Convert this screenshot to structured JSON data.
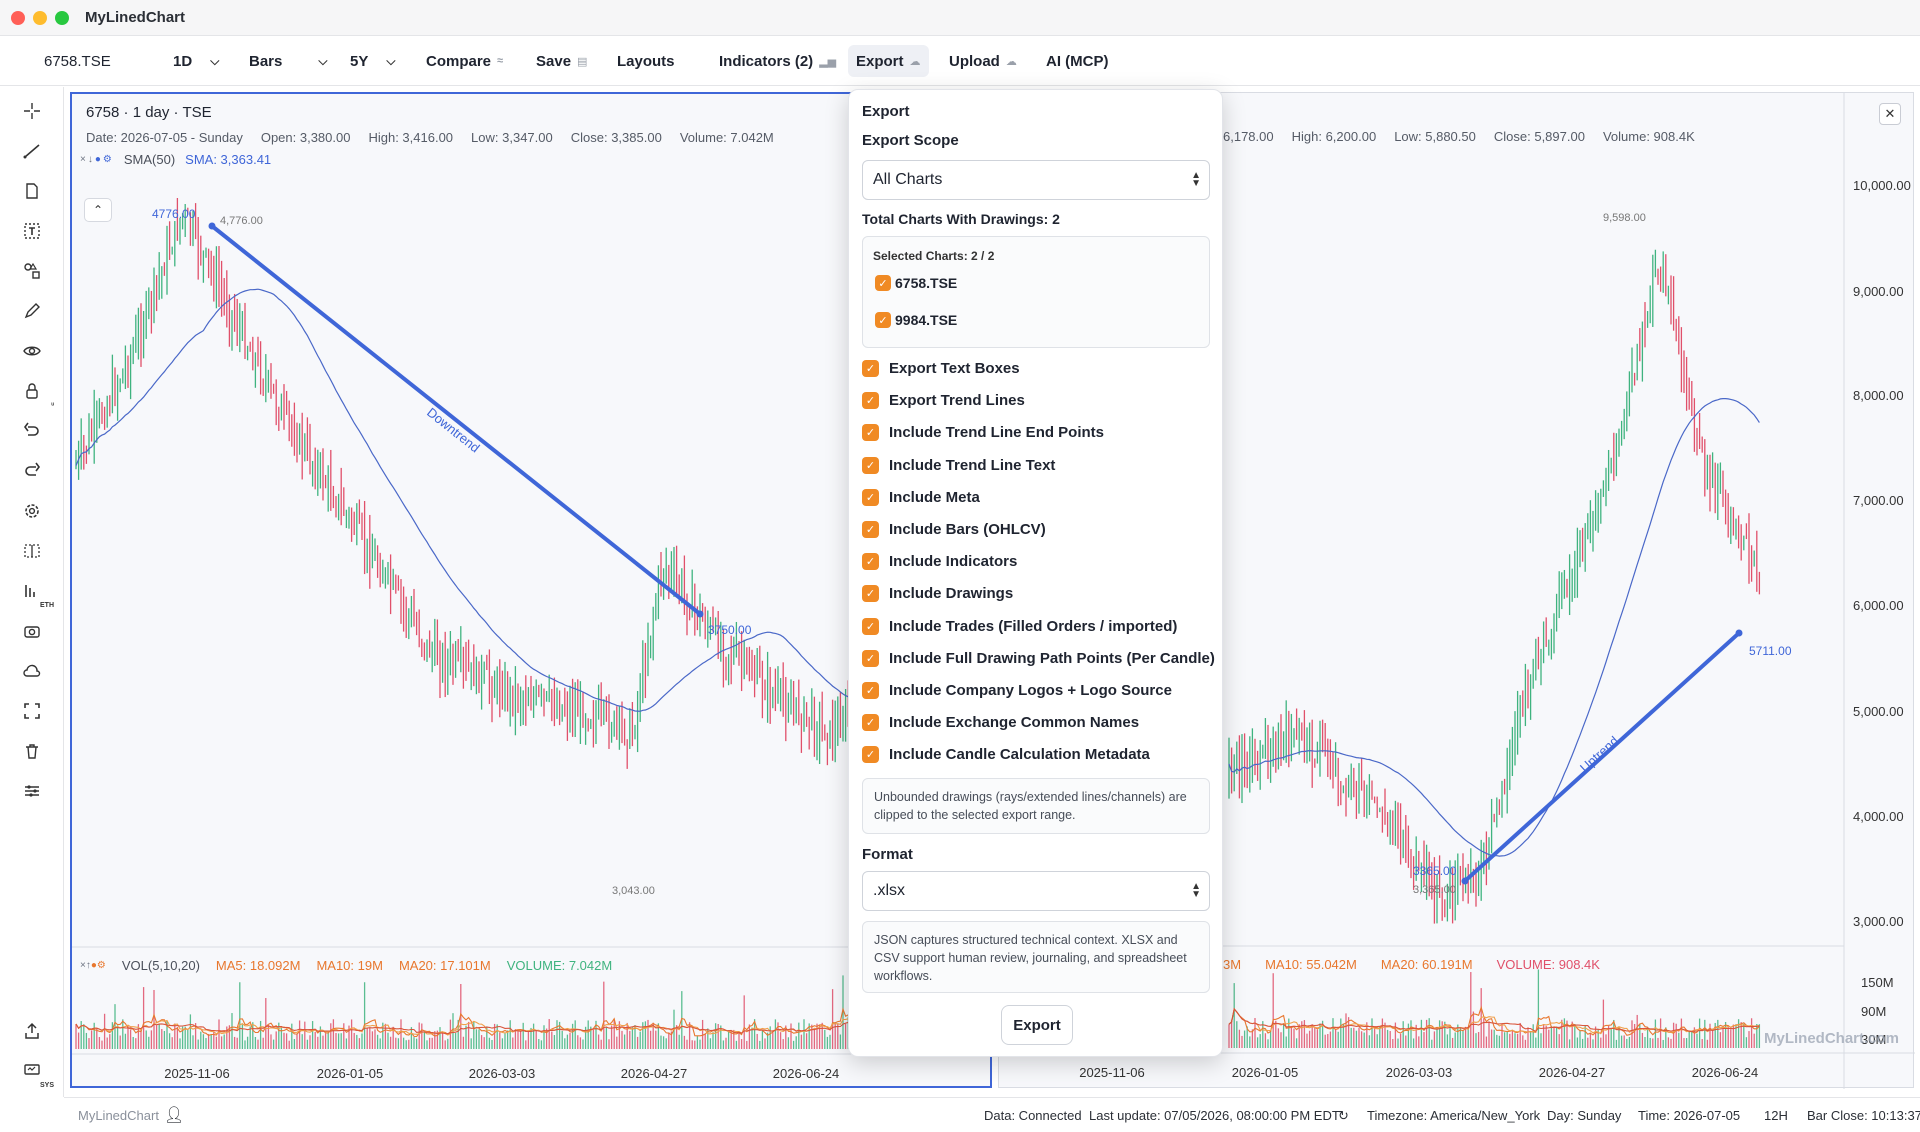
{
  "app": {
    "title": "MyLinedChart"
  },
  "toolbar": {
    "symbol": "6758.TSE",
    "interval": "1D",
    "chart_type": "Bars",
    "range": "5Y",
    "compare": "Compare",
    "save": "Save",
    "layouts": "Layouts",
    "indicators": "Indicators (2)",
    "export": "Export",
    "upload": "Upload",
    "ai": "AI (MCP)"
  },
  "left_chart": {
    "title": "6758 · 1 day · TSE",
    "ohlc": {
      "date": "Date: 2026-07-05 - Sunday",
      "open": "Open: 3,380.00",
      "high": "High: 3,416.00",
      "low": "Low: 3,347.00",
      "close": "Close: 3,385.00",
      "volume": "Volume: 7.042M"
    },
    "indicator": {
      "name": "SMA(50)",
      "value": "SMA: 3,363.41"
    },
    "volume_legend": {
      "name": "VOL(5,10,20)",
      "ma5": "MA5: 18.092M",
      "ma10": "MA10: 19M",
      "ma20": "MA20: 17.101M",
      "vol": "VOLUME: 7.042M"
    },
    "x_ticks": [
      "2025-11-06",
      "2026-01-05",
      "2026-03-03",
      "2026-04-27",
      "2026-06-24"
    ],
    "annotations": {
      "start_label": "4776.00",
      "high_label": "4,776.00",
      "end_label": "3750.00",
      "low_label": "3,043.00",
      "trend_text": "Downtrend"
    }
  },
  "right_chart": {
    "ohlc": {
      "open": "6,178.00",
      "high": "High: 6,200.00",
      "low": "Low: 5,880.50",
      "close": "Close: 5,897.00",
      "volume": "Volume: 908.4K"
    },
    "volume_legend": {
      "ma5": "3M",
      "ma10": "MA10: 55.042M",
      "ma20": "MA20: 60.191M",
      "vol": "VOLUME: 908.4K"
    },
    "y_ticks": [
      "10,000.00",
      "9,000.00",
      "8,000.00",
      "7,000.00",
      "6,000.00",
      "5,000.00",
      "4,000.00",
      "3,000.00"
    ],
    "vol_ticks": [
      "150M",
      "90M",
      "30M"
    ],
    "x_ticks": [
      "2025-11-06",
      "2026-01-05",
      "2026-03-03",
      "2026-04-27",
      "2026-06-24"
    ],
    "annotations": {
      "high_label": "9,598.00",
      "end_label": "5711.00",
      "start_label": "3365.00",
      "low_label": "3,365.00",
      "trend_text": "Uptrend"
    },
    "watermark": "MyLinedChart.com"
  },
  "export_panel": {
    "title": "Export",
    "scope_label": "Export Scope",
    "scope_value": "All Charts",
    "total": "Total Charts With Drawings: 2",
    "selected_header": "Selected Charts: 2 / 2",
    "charts": [
      "6758.TSE",
      "9984.TSE"
    ],
    "options": [
      "Export Text Boxes",
      "Export Trend Lines",
      "Include Trend Line End Points",
      "Include Trend Line Text",
      "Include Meta",
      "Include Bars (OHLCV)",
      "Include Indicators",
      "Include Drawings",
      "Include Trades (Filled Orders / imported)",
      "Include Full Drawing Path Points (Per Candle)",
      "Include Company Logos + Logo Source",
      "Include Exchange Common Names",
      "Include Candle Calculation Metadata"
    ],
    "clip_note": "Unbounded drawings (rays/extended lines/channels) are clipped to the selected export range.",
    "format_label": "Format",
    "format_value": ".xlsx",
    "format_note": "JSON captures structured technical context. XLSX and CSV support human review, journaling, and spreadsheet workflows.",
    "export_button": "Export"
  },
  "statusbar": {
    "brand": "MyLinedChart",
    "data": "Data: Connected",
    "last_update": "Last update: 07/05/2026, 08:00:00 PM EDT",
    "timezone": "Timezone: America/New_York",
    "day": "Day: Sunday",
    "time": "Time: 2026-07-05",
    "hour_mode": "12H",
    "bar_close": "Bar Close: 10:13:37"
  },
  "colors": {
    "accent": "#3f66d8",
    "up": "#3fb37f",
    "down": "#e0506a",
    "check": "#f08a24",
    "ma5": "#e8772e"
  }
}
